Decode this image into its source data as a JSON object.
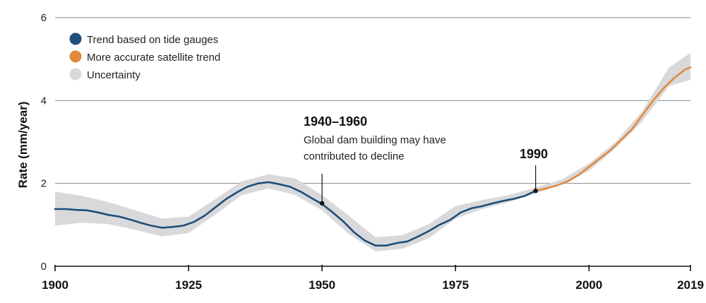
{
  "chart_data": {
    "type": "line",
    "title": "",
    "xlabel": "",
    "ylabel": "Rate (mm/year)",
    "xlim": [
      1900,
      2019
    ],
    "ylim": [
      0,
      6
    ],
    "x_ticks": [
      "1900",
      "1925",
      "1950",
      "1975",
      "2000",
      "2019"
    ],
    "y_ticks": [
      "0",
      "2",
      "4",
      "6"
    ],
    "grid": "horizontal",
    "legend_position": "top-left",
    "legend": [
      {
        "label": "Trend based on tide gauges",
        "color": "#1f4e79"
      },
      {
        "label": "More accurate satellite trend",
        "color": "#e08a3c"
      },
      {
        "label": "Uncertainty",
        "color": "#d9d9dc"
      }
    ],
    "series": [
      {
        "name": "Trend based on tide gauges",
        "color": "#1f4e79",
        "x": [
          1900,
          1902,
          1904,
          1906,
          1908,
          1910,
          1912,
          1914,
          1916,
          1918,
          1920,
          1922,
          1924,
          1926,
          1928,
          1930,
          1932,
          1934,
          1936,
          1938,
          1940,
          1942,
          1944,
          1946,
          1948,
          1950,
          1952,
          1954,
          1956,
          1958,
          1960,
          1962,
          1964,
          1966,
          1968,
          1970,
          1972,
          1974,
          1976,
          1978,
          1980,
          1982,
          1984,
          1986,
          1988,
          1990
        ],
        "y": [
          1.38,
          1.38,
          1.36,
          1.35,
          1.3,
          1.24,
          1.2,
          1.13,
          1.05,
          0.98,
          0.93,
          0.95,
          0.98,
          1.07,
          1.22,
          1.42,
          1.62,
          1.78,
          1.92,
          2.0,
          2.03,
          1.98,
          1.92,
          1.8,
          1.65,
          1.5,
          1.3,
          1.08,
          0.82,
          0.62,
          0.5,
          0.5,
          0.56,
          0.6,
          0.72,
          0.85,
          1.0,
          1.12,
          1.3,
          1.4,
          1.45,
          1.52,
          1.58,
          1.63,
          1.7,
          1.82
        ]
      },
      {
        "name": "More accurate satellite trend",
        "color": "#e08a3c",
        "x": [
          1990,
          1992,
          1994,
          1996,
          1998,
          2000,
          2002,
          2004,
          2006,
          2008,
          2010,
          2012,
          2014,
          2016,
          2017,
          2018,
          2019
        ],
        "y": [
          1.82,
          1.88,
          1.95,
          2.05,
          2.2,
          2.4,
          2.6,
          2.8,
          3.05,
          3.3,
          3.65,
          4.0,
          4.3,
          4.55,
          4.65,
          4.75,
          4.8
        ]
      }
    ],
    "uncertainty": {
      "name": "Uncertainty",
      "color": "#d9d9dc",
      "x": [
        1900,
        1905,
        1910,
        1915,
        1920,
        1925,
        1930,
        1935,
        1940,
        1945,
        1950,
        1955,
        1960,
        1965,
        1970,
        1975,
        1980,
        1985,
        1990,
        1995,
        2000,
        2005,
        2010,
        2015,
        2019
      ],
      "lower": [
        0.98,
        1.05,
        1.02,
        0.88,
        0.72,
        0.8,
        1.25,
        1.72,
        1.88,
        1.72,
        1.35,
        0.78,
        0.36,
        0.42,
        0.68,
        1.15,
        1.38,
        1.55,
        1.76,
        1.98,
        2.3,
        2.85,
        3.5,
        4.35,
        4.5
      ],
      "upper": [
        1.8,
        1.7,
        1.55,
        1.35,
        1.15,
        1.2,
        1.62,
        2.05,
        2.22,
        2.12,
        1.72,
        1.22,
        0.7,
        0.75,
        1.02,
        1.45,
        1.6,
        1.72,
        1.9,
        2.1,
        2.48,
        3.0,
        3.75,
        4.8,
        5.15
      ]
    },
    "annotations": [
      {
        "x": 1950,
        "y": 1.52,
        "title": "1940–1960",
        "lines": [
          "Global dam building may have",
          "contributed to decline"
        ]
      },
      {
        "x": 1990,
        "y": 1.82,
        "title": "1990",
        "lines": []
      }
    ]
  }
}
